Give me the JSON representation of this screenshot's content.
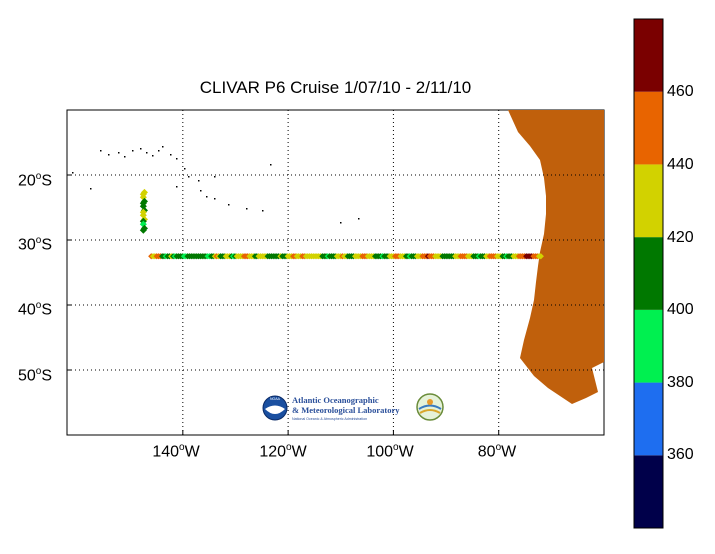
{
  "map": {
    "title": "CLIVAR P6 Cruise 1/07/10 - 2/11/10",
    "lon_range": [
      -162,
      -60
    ],
    "lat_range": [
      -60,
      -10
    ],
    "lat_ticks": [
      {
        "value": -20,
        "deg": "20",
        "hem": "S"
      },
      {
        "value": -30,
        "deg": "30",
        "hem": "S"
      },
      {
        "value": -40,
        "deg": "40",
        "hem": "S"
      },
      {
        "value": -50,
        "deg": "50",
        "hem": "S"
      }
    ],
    "lon_ticks": [
      {
        "value": -140,
        "deg": "140",
        "hem": "W"
      },
      {
        "value": -120,
        "deg": "120",
        "hem": "W"
      },
      {
        "value": -100,
        "deg": "100",
        "hem": "W"
      },
      {
        "value": -80,
        "deg": "80",
        "hem": "W"
      }
    ],
    "grid": "dotted",
    "land_color": "#C0600C"
  },
  "colorbar": {
    "range": [
      340,
      480
    ],
    "ticks": [
      "360",
      "380",
      "400",
      "420",
      "440",
      "460"
    ],
    "bands": [
      {
        "from": 340,
        "to": 360,
        "color": "#00004A"
      },
      {
        "from": 360,
        "to": 380,
        "color": "#1E6EF0"
      },
      {
        "from": 380,
        "to": 400,
        "color": "#00F050"
      },
      {
        "from": 400,
        "to": 420,
        "color": "#007800"
      },
      {
        "from": 420,
        "to": 440,
        "color": "#D2D200"
      },
      {
        "from": 440,
        "to": 460,
        "color": "#E86400"
      },
      {
        "from": 460,
        "to": 480,
        "color": "#7A0000"
      }
    ]
  },
  "cruise_track": {
    "leg1": {
      "lon": -147.5,
      "lat_start": -22.5,
      "lat_end": -28.5
    },
    "leg2": {
      "lat": -32.5,
      "lon_start": -146,
      "lon_end": -72
    },
    "values": [
      428,
      432,
      425,
      410,
      405,
      412,
      418,
      422,
      430,
      428,
      402,
      398,
      405,
      410,
      442,
      436,
      428,
      445,
      447,
      444,
      412,
      405,
      398,
      405,
      410,
      420,
      404,
      398,
      402,
      408,
      412,
      404,
      398,
      396,
      401,
      404,
      412,
      418,
      404,
      400,
      402,
      408,
      410,
      416,
      402,
      398,
      396,
      404,
      410,
      428,
      440,
      432,
      412,
      404,
      410,
      428,
      432,
      430,
      402,
      398,
      405,
      425,
      428,
      432,
      434,
      440,
      446,
      444,
      430,
      428,
      420,
      412,
      418,
      426,
      432,
      430,
      428,
      420,
      412,
      408,
      404,
      400,
      402,
      412,
      418,
      422,
      406,
      404,
      410,
      428,
      436,
      438,
      442,
      446,
      434,
      430,
      428,
      440,
      444,
      436,
      430,
      422,
      426,
      432,
      428,
      430,
      424,
      420,
      412,
      408,
      404,
      398,
      402,
      406,
      412,
      418,
      424,
      428,
      436,
      440,
      432,
      420,
      414,
      408,
      404,
      412,
      420,
      426,
      430,
      434,
      440,
      446,
      442,
      436,
      430,
      426,
      420,
      416,
      410,
      404,
      400,
      398,
      402,
      410,
      418,
      422,
      428,
      436,
      440,
      444,
      442,
      436,
      428,
      420,
      412,
      404,
      398,
      402,
      410,
      418,
      424,
      430,
      436,
      444,
      450,
      456,
      460,
      455,
      448,
      442,
      436,
      430,
      426,
      422,
      418,
      414,
      410,
      406,
      402,
      404,
      412,
      420,
      428,
      436,
      442,
      448,
      446,
      440,
      434,
      428,
      420,
      412,
      406,
      400,
      398,
      402,
      410,
      418,
      426,
      434,
      442,
      446,
      444,
      440,
      436,
      428,
      420,
      412,
      404,
      398,
      400,
      406,
      414,
      422,
      430,
      438,
      442,
      446,
      450,
      458,
      464,
      470,
      466,
      462,
      455,
      448,
      442,
      436,
      430
    ]
  },
  "logo": {
    "line1": "Atlantic Oceanographic",
    "line2": "& Meteorological Laboratory",
    "line3": "National Oceanic & Atmospheric Administration",
    "emblem_text": "NOAA"
  }
}
